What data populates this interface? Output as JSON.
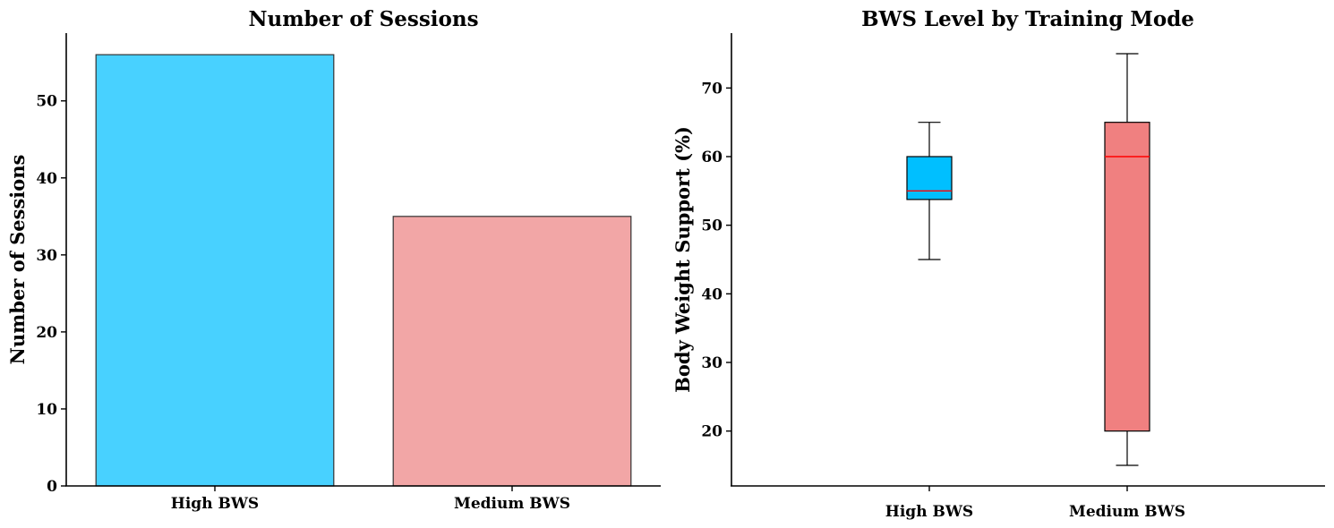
{
  "chart_data": [
    {
      "type": "bar",
      "title": "Number of Sessions",
      "xlabel": "",
      "ylabel": "Number of Sessions",
      "categories": [
        "High BWS",
        "Medium BWS"
      ],
      "values": [
        56,
        35
      ],
      "colors": [
        "#48d1ff",
        "#f2a6a6"
      ],
      "edge_color": "#333333",
      "ylim": [
        0,
        58.8
      ],
      "yticks": [
        0,
        10,
        20,
        30,
        40,
        50
      ],
      "grid": false
    },
    {
      "type": "box",
      "title": "BWS Level by Training Mode",
      "xlabel": "",
      "ylabel": "Body Weight Support (%)",
      "categories": [
        "High BWS",
        "Medium BWS"
      ],
      "boxes": [
        {
          "whisker_low": 45,
          "q1": 53.75,
          "median": 55,
          "q3": 60,
          "whisker_high": 65
        },
        {
          "whisker_low": 15,
          "q1": 20,
          "median": 60,
          "q3": 65,
          "whisker_high": 75
        }
      ],
      "colors": [
        "#00bfff",
        "#f08080"
      ],
      "median_color": "#ff0000",
      "ylim": [
        12,
        78
      ],
      "yticks": [
        20,
        30,
        40,
        50,
        60,
        70
      ],
      "grid": false
    }
  ]
}
